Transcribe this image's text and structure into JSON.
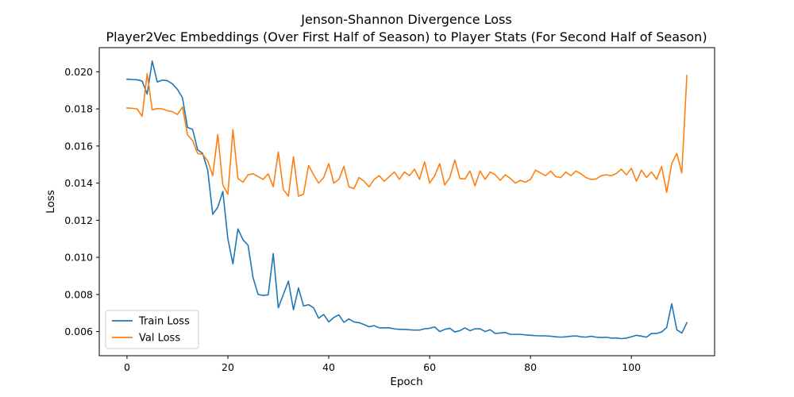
{
  "chart_data": {
    "type": "line",
    "title": "Jenson-Shannon Divergence Loss",
    "subtitle": "Player2Vec Embeddings (Over First Half of Season) to Player Stats (For Second Half of Season)",
    "xlabel": "Epoch",
    "ylabel": "Loss",
    "xlim": [
      -5.5,
      116.5
    ],
    "ylim": [
      0.0047,
      0.0213
    ],
    "xticks": [
      0,
      20,
      40,
      60,
      80,
      100
    ],
    "yticks": [
      0.006,
      0.008,
      0.01,
      0.012,
      0.014,
      0.016,
      0.018,
      0.02
    ],
    "ytick_labels": [
      "0.006",
      "0.008",
      "0.010",
      "0.012",
      "0.014",
      "0.016",
      "0.018",
      "0.020"
    ],
    "grid": false,
    "legend": "lower-left",
    "x": [
      0,
      1,
      2,
      3,
      4,
      5,
      6,
      7,
      8,
      9,
      10,
      11,
      12,
      13,
      14,
      15,
      16,
      17,
      18,
      19,
      20,
      21,
      22,
      23,
      24,
      25,
      26,
      27,
      28,
      29,
      30,
      31,
      32,
      33,
      34,
      35,
      36,
      37,
      38,
      39,
      40,
      41,
      42,
      43,
      44,
      45,
      46,
      47,
      48,
      49,
      50,
      51,
      52,
      53,
      54,
      55,
      56,
      57,
      58,
      59,
      60,
      61,
      62,
      63,
      64,
      65,
      66,
      67,
      68,
      69,
      70,
      71,
      72,
      73,
      74,
      75,
      76,
      77,
      78,
      79,
      80,
      81,
      82,
      83,
      84,
      85,
      86,
      87,
      88,
      89,
      90,
      91,
      92,
      93,
      94,
      95,
      96,
      97,
      98,
      99,
      100,
      101,
      102,
      103,
      104,
      105,
      106,
      107,
      108,
      109,
      110,
      111
    ],
    "series": [
      {
        "name": "Train Loss",
        "color": "#1f77b4",
        "values": [
          0.0196,
          0.01958,
          0.01957,
          0.0195,
          0.0188,
          0.02058,
          0.01945,
          0.01955,
          0.01952,
          0.01935,
          0.01905,
          0.0186,
          0.017,
          0.0169,
          0.0158,
          0.0156,
          0.0147,
          0.01232,
          0.0127,
          0.01355,
          0.011,
          0.00965,
          0.01153,
          0.01095,
          0.01065,
          0.0089,
          0.008,
          0.00795,
          0.00798,
          0.0102,
          0.00728,
          0.008,
          0.00872,
          0.00718,
          0.00835,
          0.00738,
          0.00745,
          0.00728,
          0.00672,
          0.00692,
          0.00652,
          0.00676,
          0.0069,
          0.0065,
          0.00668,
          0.00652,
          0.00648,
          0.00638,
          0.00626,
          0.00632,
          0.0062,
          0.0062,
          0.0062,
          0.00615,
          0.00612,
          0.00612,
          0.0061,
          0.00608,
          0.00608,
          0.00615,
          0.00618,
          0.00625,
          0.006,
          0.00612,
          0.00618,
          0.00598,
          0.00605,
          0.0062,
          0.00605,
          0.00615,
          0.00615,
          0.006,
          0.0061,
          0.0059,
          0.00592,
          0.00595,
          0.00585,
          0.00585,
          0.00585,
          0.00582,
          0.0058,
          0.00578,
          0.00577,
          0.00577,
          0.00575,
          0.00572,
          0.0057,
          0.00572,
          0.00575,
          0.00577,
          0.00572,
          0.0057,
          0.00575,
          0.0057,
          0.00568,
          0.0057,
          0.00565,
          0.00566,
          0.00562,
          0.00565,
          0.00572,
          0.0058,
          0.00575,
          0.0057,
          0.0059,
          0.0059,
          0.00598,
          0.00622,
          0.0075,
          0.0061,
          0.00592,
          0.00648
        ]
      },
      {
        "name": "Val Loss",
        "color": "#ff7f0e",
        "values": [
          0.01805,
          0.01803,
          0.018,
          0.0176,
          0.0199,
          0.01795,
          0.01802,
          0.018,
          0.0179,
          0.01785,
          0.0177,
          0.0181,
          0.0166,
          0.0163,
          0.0156,
          0.01555,
          0.0152,
          0.0144,
          0.01662,
          0.0139,
          0.0134,
          0.01688,
          0.01425,
          0.01405,
          0.01445,
          0.0145,
          0.01435,
          0.0142,
          0.0145,
          0.0138,
          0.01568,
          0.01365,
          0.0133,
          0.01542,
          0.0133,
          0.0134,
          0.01495,
          0.01445,
          0.014,
          0.0143,
          0.01505,
          0.014,
          0.0142,
          0.0149,
          0.0138,
          0.0137,
          0.0143,
          0.0141,
          0.0138,
          0.0142,
          0.0144,
          0.0141,
          0.01435,
          0.0146,
          0.0142,
          0.0146,
          0.0144,
          0.01475,
          0.0142,
          0.01515,
          0.014,
          0.0144,
          0.01505,
          0.0139,
          0.0143,
          0.01525,
          0.01425,
          0.01422,
          0.01465,
          0.01385,
          0.01465,
          0.0142,
          0.0146,
          0.01445,
          0.01415,
          0.01445,
          0.01425,
          0.014,
          0.01415,
          0.01405,
          0.0142,
          0.0147,
          0.01455,
          0.0144,
          0.01465,
          0.01435,
          0.0143,
          0.0146,
          0.0144,
          0.01465,
          0.0145,
          0.0143,
          0.0142,
          0.01422,
          0.0144,
          0.01445,
          0.0144,
          0.01452,
          0.01475,
          0.01445,
          0.0148,
          0.0141,
          0.0147,
          0.0143,
          0.0146,
          0.0142,
          0.0149,
          0.0135,
          0.01505,
          0.0156,
          0.01455,
          0.0198
        ]
      }
    ]
  }
}
